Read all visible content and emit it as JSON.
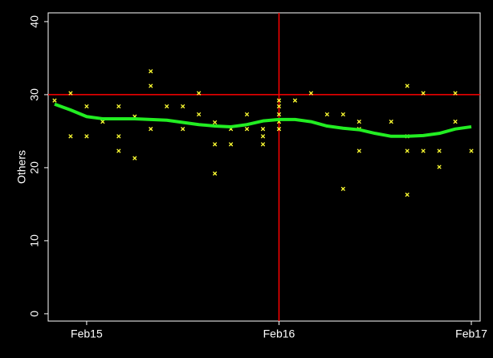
{
  "chart_data": {
    "type": "scatter",
    "y_label": "Others",
    "background": "#000000",
    "ylim": [
      -1,
      41.2
    ],
    "yticks": [
      0,
      10,
      20,
      30,
      40
    ],
    "xlim": [
      -2.4,
      24.55
    ],
    "xticks": [
      {
        "value": 0,
        "label": "Feb15"
      },
      {
        "value": 12,
        "label": "Feb16"
      },
      {
        "value": 24,
        "label": "Feb17"
      }
    ],
    "reference_lines": {
      "color": "#ff0000",
      "y": [
        30
      ],
      "x": [
        12
      ]
    },
    "series": [
      {
        "type": "scatter",
        "color": "#ffff33",
        "x": [
          -2,
          -1,
          -1,
          0,
          0,
          1,
          2,
          2,
          2,
          3,
          3,
          4,
          4,
          4,
          5,
          6,
          6,
          7,
          7,
          8,
          8,
          8,
          9,
          9,
          10,
          10,
          11,
          11,
          11,
          12,
          12,
          12,
          12,
          12,
          13,
          14,
          15,
          16,
          16,
          17,
          17,
          17,
          19,
          20,
          20,
          20,
          20,
          21,
          21,
          22,
          22,
          23,
          23,
          24
        ],
        "values": [
          29.2,
          30.2,
          24.3,
          28.4,
          24.3,
          26.3,
          28.4,
          24.3,
          22.3,
          27,
          21.3,
          33.2,
          31.2,
          25.3,
          28.4,
          28.4,
          25.3,
          30.2,
          27.3,
          26.2,
          23.2,
          19.2,
          25.3,
          23.2,
          27.3,
          25.3,
          25.3,
          24.3,
          23.2,
          29.2,
          28.4,
          27.3,
          26.3,
          25.3,
          29.2,
          30.2,
          27.3,
          27.3,
          17.1,
          26.3,
          25.3,
          22.3,
          26.3,
          31.2,
          24.3,
          22.3,
          16.3,
          30.2,
          22.3,
          22.3,
          20.1,
          30.2,
          26.3,
          22.3
        ]
      },
      {
        "type": "line",
        "color": "#22ee22",
        "x": [
          -2,
          -1,
          0,
          1,
          2,
          3,
          4,
          5,
          6,
          7,
          8,
          9,
          10,
          11,
          12,
          13,
          14,
          15,
          16,
          17,
          18,
          19,
          20,
          21,
          22,
          23,
          24
        ],
        "values": [
          28.7,
          27.9,
          27,
          26.7,
          26.7,
          26.7,
          26.6,
          26.5,
          26.2,
          25.9,
          25.7,
          25.6,
          25.9,
          26.4,
          26.6,
          26.6,
          26.3,
          25.7,
          25.4,
          25.2,
          24.7,
          24.3,
          24.3,
          24.4,
          24.7,
          25.3,
          25.6
        ]
      }
    ]
  }
}
